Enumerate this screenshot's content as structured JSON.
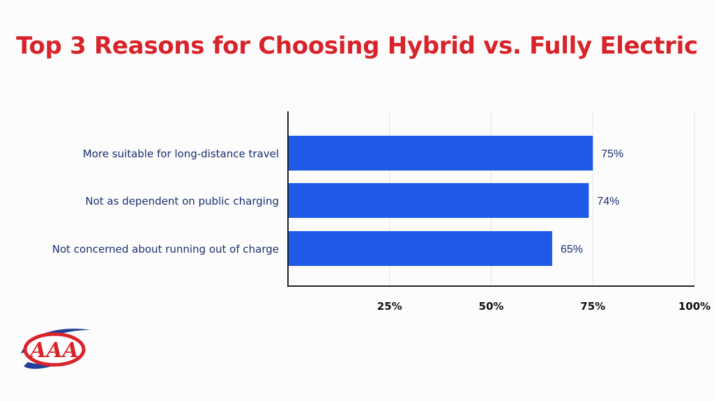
{
  "title": "Top 3 Reasons for Choosing Hybrid vs. Fully Electric",
  "logo_text": "AAA",
  "colors": {
    "title": "#d8232a",
    "bar": "#1f5ae6",
    "label": "#1a2e6e",
    "value_label": "#1a2e6e",
    "axis": "#222222",
    "grid": "#e3e3e3",
    "logo_red": "#d8232a",
    "logo_blue": "#1f3f99"
  },
  "chart_data": {
    "type": "bar",
    "orientation": "horizontal",
    "categories": [
      "More suitable for long-distance travel",
      "Not as dependent on public charging",
      "Not concerned about running out of charge"
    ],
    "values": [
      75,
      74,
      65
    ],
    "value_labels": [
      "75%",
      "74%",
      "65%"
    ],
    "xlim": [
      0,
      100
    ],
    "xticks": [
      25,
      50,
      75,
      100
    ],
    "xtick_labels": [
      "25%",
      "50%",
      "75%",
      "100%"
    ],
    "grid": true
  }
}
